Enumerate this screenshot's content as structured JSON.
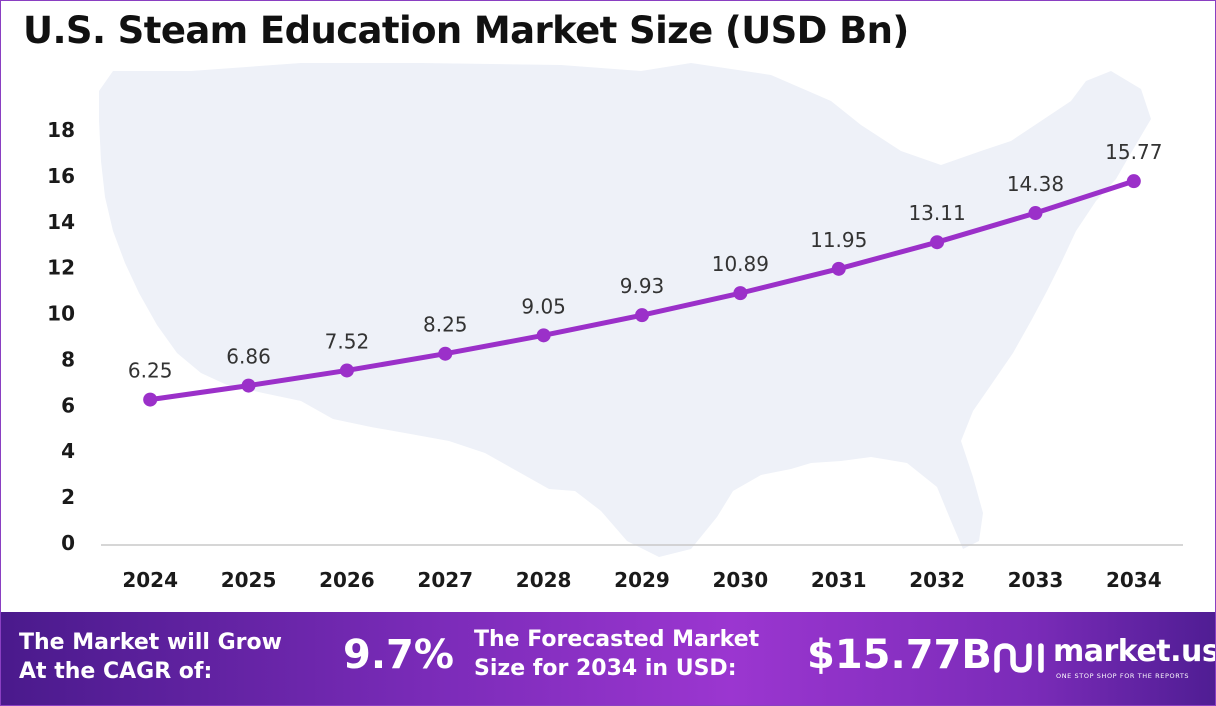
{
  "title": "U.S. Steam Education Market Size (USD Bn)",
  "chart_data": {
    "type": "line",
    "title": "U.S. Steam Education Market Size (USD Bn)",
    "xlabel": "",
    "ylabel": "",
    "categories": [
      "2024",
      "2025",
      "2026",
      "2027",
      "2028",
      "2029",
      "2030",
      "2031",
      "2032",
      "2033",
      "2034"
    ],
    "values": [
      6.25,
      6.86,
      7.52,
      8.25,
      9.05,
      9.93,
      10.89,
      11.95,
      13.11,
      14.38,
      15.77
    ],
    "data_labels": [
      "6.25",
      "6.86",
      "7.52",
      "8.25",
      "9.05",
      "9.93",
      "10.89",
      "11.95",
      "13.11",
      "14.38",
      "15.77"
    ],
    "ylim": [
      0,
      18
    ],
    "yticks": [
      0,
      2,
      4,
      6,
      8,
      10,
      12,
      14,
      16,
      18
    ],
    "grid": false,
    "line_color": "#9b30c9",
    "background": "map of the United States (light)"
  },
  "footer": {
    "cagr_text": "The Market will Grow At the CAGR of:",
    "cagr_line1": "The Market will Grow",
    "cagr_line2": "At the CAGR of:",
    "cagr_value": "9.7%",
    "forecast_line1": "The Forecasted Market",
    "forecast_line2": "Size for 2034 in USD:",
    "forecast_value": "$15.77B",
    "logo_name": "market.us",
    "logo_tagline": "ONE STOP SHOP FOR THE REPORTS"
  },
  "colors": {
    "accent": "#9b30c9",
    "footer_dark": "#4a1a8c",
    "footer_light": "#9b36d0",
    "map": "#eef1f8"
  }
}
